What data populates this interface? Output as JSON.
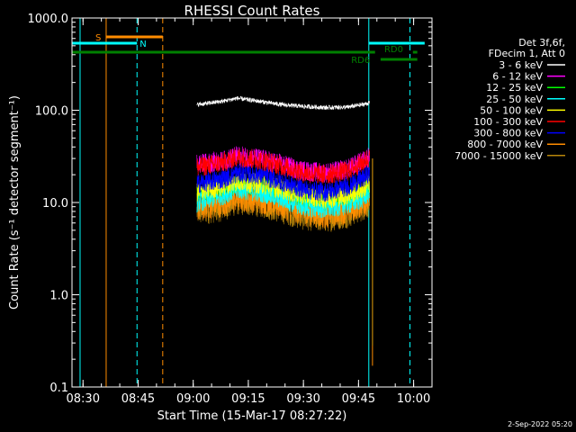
{
  "chart_data": {
    "type": "line",
    "title": "RHESSI Count Rates",
    "xlabel": "Start Time (15-Mar-17 08:27:22)",
    "ylabel": "Count Rate (s⁻¹ detector segment⁻¹)",
    "y_scale": "log",
    "ylim": [
      0.1,
      1000
    ],
    "xlim": [
      "08:27",
      "10:05"
    ],
    "y_ticks": [
      "0.1",
      "1.0",
      "10.0",
      "100.0",
      "1000.0"
    ],
    "x_ticks": [
      "08:30",
      "08:45",
      "09:00",
      "09:15",
      "09:30",
      "09:45",
      "10:00"
    ],
    "legend_header": [
      "Det 3f,6f,",
      "FDecim 1, Att 0"
    ],
    "legend_position": "right, outside plot",
    "series": [
      {
        "name": "3 - 6 keV",
        "color": "#000000",
        "x": [
          "09:01",
          "09:08",
          "09:12",
          "09:18",
          "09:24",
          "09:30",
          "09:36",
          "09:42",
          "09:46",
          "09:48"
        ],
        "values": [
          115,
          125,
          135,
          125,
          115,
          110,
          107,
          108,
          115,
          120
        ]
      },
      {
        "name": "6 - 12 keV",
        "color": "#ff00ff",
        "x": [
          "09:01",
          "09:08",
          "09:12",
          "09:18",
          "09:24",
          "09:30",
          "09:36",
          "09:42",
          "09:46",
          "09:48"
        ],
        "values": [
          26,
          28,
          32,
          30,
          26,
          22,
          21,
          23,
          28,
          32
        ]
      },
      {
        "name": "12 - 25 keV",
        "color": "#00ff00",
        "x": [
          "09:01",
          "09:08",
          "09:12",
          "09:18",
          "09:24",
          "09:30",
          "09:36",
          "09:42",
          "09:46",
          "09:48"
        ],
        "values": [
          12,
          14,
          16,
          15,
          13,
          11,
          10,
          11,
          13,
          15
        ]
      },
      {
        "name": "25 - 50 keV",
        "color": "#00ffff",
        "x": [
          "09:01",
          "09:08",
          "09:12",
          "09:18",
          "09:24",
          "09:30",
          "09:36",
          "09:42",
          "09:46",
          "09:48"
        ],
        "values": [
          10,
          12,
          14,
          13,
          11,
          9,
          8.5,
          9.5,
          11,
          13
        ]
      },
      {
        "name": "50 - 100 keV",
        "color": "#ffff00",
        "x": [
          "09:01",
          "09:08",
          "09:12",
          "09:18",
          "09:24",
          "09:30",
          "09:36",
          "09:42",
          "09:46",
          "09:48"
        ],
        "values": [
          13,
          15,
          17,
          16,
          14,
          12,
          11,
          12,
          14,
          16
        ]
      },
      {
        "name": "100 - 300 keV",
        "color": "#ff0000",
        "x": [
          "09:01",
          "09:08",
          "09:12",
          "09:18",
          "09:24",
          "09:30",
          "09:36",
          "09:42",
          "09:46",
          "09:48"
        ],
        "values": [
          24,
          27,
          31,
          29,
          25,
          21,
          20,
          22,
          27,
          31
        ]
      },
      {
        "name": "300 - 800 keV",
        "color": "#0000ff",
        "x": [
          "09:01",
          "09:08",
          "09:12",
          "09:18",
          "09:24",
          "09:30",
          "09:36",
          "09:42",
          "09:46",
          "09:48"
        ],
        "values": [
          16,
          18,
          21,
          20,
          17,
          14,
          13,
          15,
          18,
          21
        ]
      },
      {
        "name": "800 - 7000 keV",
        "color": "#ff8c00",
        "x": [
          "09:01",
          "09:08",
          "09:12",
          "09:18",
          "09:24",
          "09:30",
          "09:36",
          "09:42",
          "09:46",
          "09:48"
        ],
        "values": [
          9,
          10,
          11.5,
          11,
          9.5,
          8,
          7.5,
          8.5,
          10,
          11
        ]
      },
      {
        "name": "7000 - 15000 keV",
        "color": "#b8860b",
        "x": [
          "09:01",
          "09:08",
          "09:12",
          "09:18",
          "09:24",
          "09:30",
          "09:36",
          "09:42",
          "09:46",
          "09:48"
        ],
        "values": [
          8,
          9,
          10.5,
          10,
          8.5,
          7.2,
          6.8,
          7.6,
          9,
          10
        ]
      }
    ],
    "vertical_lines": [
      {
        "x": "08:29.2",
        "color": "#00ffff",
        "style": "solid"
      },
      {
        "x": "08:36.3",
        "color": "#ff8c00",
        "style": "solid"
      },
      {
        "x": "08:44.7",
        "color": "#00ffff",
        "style": "dashed"
      },
      {
        "x": "08:51.7",
        "color": "#ff8c00",
        "style": "dashed"
      },
      {
        "x": "09:47.8",
        "color": "#00ffff",
        "style": "solid"
      },
      {
        "x": "09:59.0",
        "color": "#00ffff",
        "style": "dashed"
      }
    ],
    "flag_bars": [
      {
        "label": "S",
        "color": "#ff8c00",
        "x1": "08:36.3",
        "x2": "08:51.7",
        "level": 1
      },
      {
        "label": "N",
        "color": "#00ffff",
        "x1": "08:27",
        "x2": "08:44.7",
        "level": 2
      },
      {
        "label": "",
        "color": "#00ffff",
        "x1": "09:47.8",
        "x2": "10:03",
        "level": 2
      },
      {
        "label": "",
        "color": "#008000",
        "x1": "08:27",
        "x2": "09:49.5",
        "level": 3
      },
      {
        "label": "RD0",
        "color": "#008000",
        "x1": "09:59.8",
        "x2": "10:01",
        "level": 3
      },
      {
        "label": "RD6",
        "color": "#008000",
        "x1": "09:51",
        "x2": "10:01",
        "level": 4
      }
    ],
    "grid": false
  },
  "footer": {
    "date": "2-Sep-2022 05:20"
  }
}
